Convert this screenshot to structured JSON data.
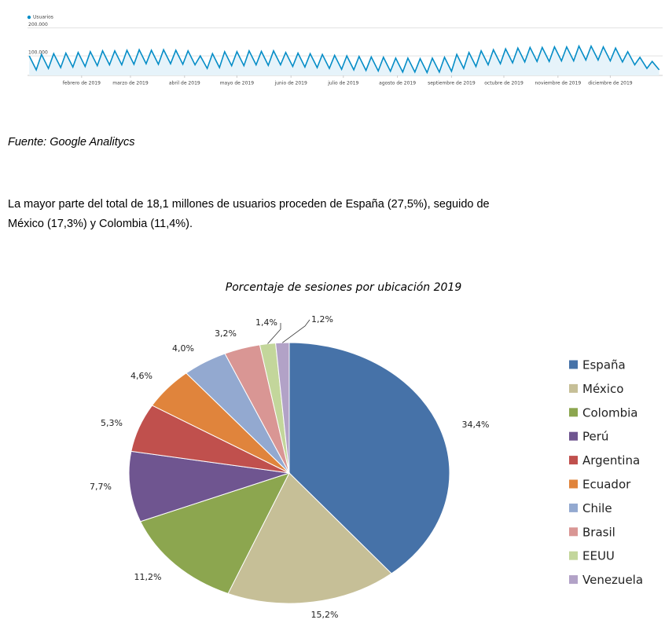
{
  "chart_data": [
    {
      "type": "line",
      "legend": "Usuarios",
      "color": "#058dc7",
      "fill": "#e6f3fa",
      "ylim": [
        30000,
        210000
      ],
      "yticks": [
        {
          "value": 100000,
          "label": "100.000"
        },
        {
          "value": 200000,
          "label": "200.000"
        }
      ],
      "grid": true,
      "xlim": [
        0,
        364
      ],
      "xticks": [
        {
          "value": 31,
          "label": "febrero de 2019"
        },
        {
          "value": 59,
          "label": "marzo de 2019"
        },
        {
          "value": 90,
          "label": "abril de 2019"
        },
        {
          "value": 120,
          "label": "mayo de 2019"
        },
        {
          "value": 151,
          "label": "junio de 2019"
        },
        {
          "value": 181,
          "label": "julio de 2019"
        },
        {
          "value": 212,
          "label": "agosto de 2019"
        },
        {
          "value": 243,
          "label": "septiembre de 2019"
        },
        {
          "value": 273,
          "label": "octubre de 2019"
        },
        {
          "value": 304,
          "label": "noviembre de 2019"
        },
        {
          "value": 334,
          "label": "diciembre de 2019"
        }
      ],
      "x": [
        1,
        5,
        8,
        12,
        15,
        19,
        22,
        26,
        29,
        33,
        36,
        40,
        43,
        47,
        50,
        54,
        57,
        61,
        64,
        68,
        71,
        75,
        78,
        82,
        85,
        89,
        92,
        96,
        99,
        103,
        106,
        110,
        113,
        117,
        120,
        124,
        127,
        131,
        134,
        138,
        141,
        145,
        148,
        152,
        155,
        159,
        162,
        166,
        169,
        173,
        176,
        180,
        183,
        187,
        190,
        194,
        197,
        201,
        204,
        208,
        211,
        215,
        218,
        222,
        225,
        229,
        232,
        236,
        239,
        243,
        246,
        250,
        253,
        257,
        260,
        264,
        267,
        271,
        274,
        278,
        281,
        285,
        288,
        292,
        295,
        299,
        302,
        306,
        309,
        313,
        316,
        320,
        323,
        327,
        330,
        334,
        337,
        341,
        344,
        348,
        351,
        355,
        358,
        362
      ],
      "values": [
        100000,
        50000,
        105000,
        55000,
        108000,
        58000,
        110000,
        60000,
        112000,
        62000,
        115000,
        65000,
        118000,
        68000,
        118000,
        68000,
        120000,
        70000,
        122000,
        72000,
        120000,
        70000,
        122000,
        72000,
        120000,
        70000,
        118000,
        68000,
        100000,
        55000,
        108000,
        58000,
        115000,
        65000,
        115000,
        65000,
        118000,
        68000,
        116000,
        66000,
        118000,
        68000,
        112000,
        62000,
        110000,
        60000,
        108000,
        58000,
        105000,
        55000,
        102000,
        52000,
        100000,
        50000,
        98000,
        48000,
        96000,
        46000,
        95000,
        45000,
        92000,
        42000,
        92000,
        42000,
        90000,
        40000,
        92000,
        42000,
        95000,
        45000,
        105000,
        55000,
        112000,
        62000,
        118000,
        68000,
        122000,
        72000,
        125000,
        75000,
        128000,
        78000,
        130000,
        80000,
        130000,
        80000,
        132000,
        82000,
        132000,
        82000,
        135000,
        85000,
        135000,
        85000,
        132000,
        82000,
        128000,
        78000,
        115000,
        68000,
        95000,
        55000,
        80000,
        50000
      ]
    },
    {
      "type": "pie",
      "title": "Porcentaje de sesiones por ubicación 2019",
      "categories": [
        "España",
        "México",
        "Colombia",
        "Perú",
        "Argentina",
        "Ecuador",
        "Chile",
        "Brasil",
        "EEUU",
        "Venezuela"
      ],
      "values": [
        34.4,
        15.2,
        11.2,
        7.7,
        5.3,
        4.6,
        4.0,
        3.2,
        1.4,
        1.2
      ],
      "value_labels": [
        "34,4%",
        "15,2%",
        "11,2%",
        "7,7%",
        "5,3%",
        "4,6%",
        "4,0%",
        "3,2%",
        "1,4%",
        "1,2%"
      ],
      "colors": [
        "#4672a8",
        "#c6bf97",
        "#8ca64f",
        "#6f5590",
        "#c0504d",
        "#e0843c",
        "#93a9d0",
        "#d99694",
        "#c3d69b",
        "#b2a2c7"
      ],
      "legend": "right"
    }
  ],
  "caption": "Fuente: Google Analitycs",
  "paragraph": [
    "La mayor parte del total de 18,1 millones de usuarios proceden de España (27,5%), seguido de",
    "México (17,3%) y Colombia (11,4%)."
  ]
}
